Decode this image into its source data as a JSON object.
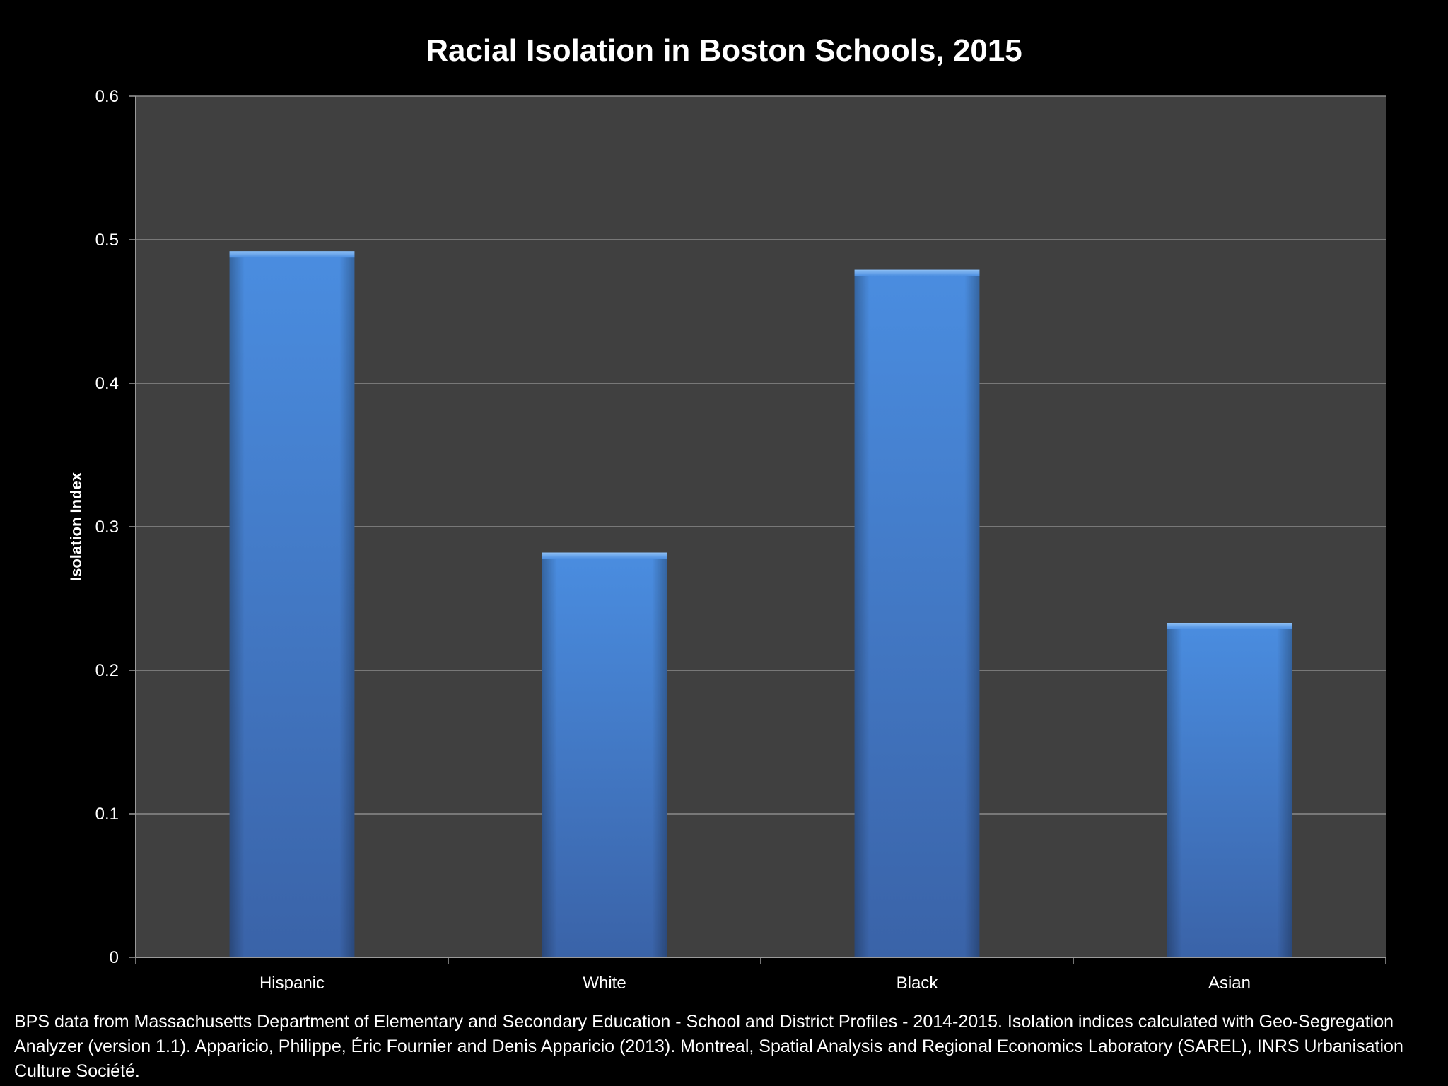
{
  "chart_data": {
    "type": "bar",
    "title": "Racial Isolation in Boston Schools, 2015",
    "xlabel": "",
    "ylabel": "Isolation Index",
    "categories": [
      "Hispanic",
      "White",
      "Black",
      "Asian"
    ],
    "values": [
      0.492,
      0.282,
      0.479,
      0.233
    ],
    "ylim": [
      0,
      0.6
    ],
    "yticks": [
      0,
      0.1,
      0.2,
      0.3,
      0.4,
      0.5,
      0.6
    ],
    "ytick_labels": [
      "0",
      "0.1",
      "0.2",
      "0.3",
      "0.4",
      "0.5",
      "0.6"
    ],
    "grid": true,
    "legend": "none"
  },
  "footnote": "BPS data from Massachusetts Department of Elementary and Secondary Education - School and District Profiles - 2014-2015.  Isolation indices calculated with Geo-Segregation Analyzer (version 1.1).  Apparicio, Philippe, Éric Fournier and Denis Apparicio (2013).  Montreal, Spatial Analysis and Regional Economics Laboratory (SAREL), INRS Urbanisation Culture Société.",
  "colors": {
    "background": "#000000",
    "plot_area": "#404040",
    "bar_top": "#4a8de0",
    "bar_bottom": "#3a63a8",
    "gridline": "#8a8a8a",
    "axis": "#9a9a9a"
  }
}
